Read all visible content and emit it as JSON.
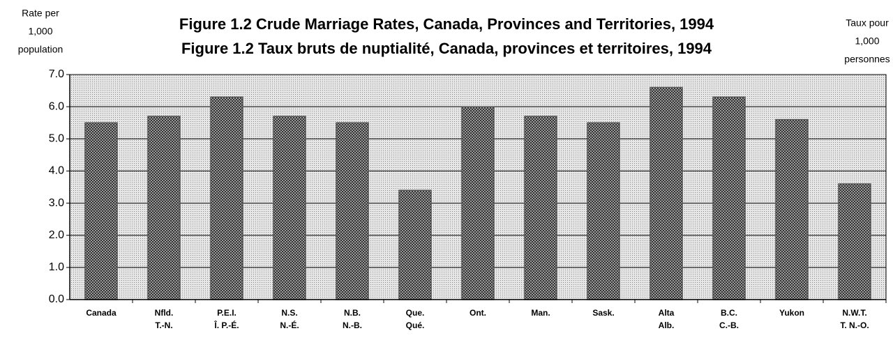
{
  "chart_data": {
    "type": "bar",
    "title": [
      "Figure 1.2   Crude Marriage Rates, Canada, Provinces and Territories, 1994",
      "Figure 1.2   Taux bruts de nuptialité, Canada, provinces et territoires, 1994"
    ],
    "y_label": [
      "Rate per",
      "1,000",
      "population"
    ],
    "y2_label": [
      "Taux pour",
      "1,000",
      "personnes"
    ],
    "categories": [
      [
        "Canada"
      ],
      [
        "Nfld.",
        "T.-N."
      ],
      [
        "P.E.I.",
        "Î. P.-É."
      ],
      [
        "N.S.",
        "N.-É."
      ],
      [
        "N.B.",
        "N.-B."
      ],
      [
        "Que.",
        "Qué."
      ],
      [
        "Ont."
      ],
      [
        "Man."
      ],
      [
        "Sask."
      ],
      [
        "Alta",
        "Alb."
      ],
      [
        "B.C.",
        "C.-B."
      ],
      [
        "Yukon"
      ],
      [
        "N.W.T.",
        "T. N.-O."
      ]
    ],
    "values": [
      5.5,
      5.7,
      6.3,
      5.7,
      5.5,
      3.4,
      6.0,
      5.7,
      5.5,
      6.6,
      6.3,
      5.6,
      3.6
    ],
    "color": "#555555",
    "ylim": [
      0,
      7
    ],
    "yticks": [
      {
        "value": 0,
        "label": "0.0"
      },
      {
        "value": 1,
        "label": "1.0"
      },
      {
        "value": 2,
        "label": "2.0"
      },
      {
        "value": 3,
        "label": "3.0"
      },
      {
        "value": 4,
        "label": "4.0"
      },
      {
        "value": 5,
        "label": "5.0"
      },
      {
        "value": 6,
        "label": "6.0"
      },
      {
        "value": 7,
        "label": "7.0"
      }
    ],
    "grid": true
  }
}
